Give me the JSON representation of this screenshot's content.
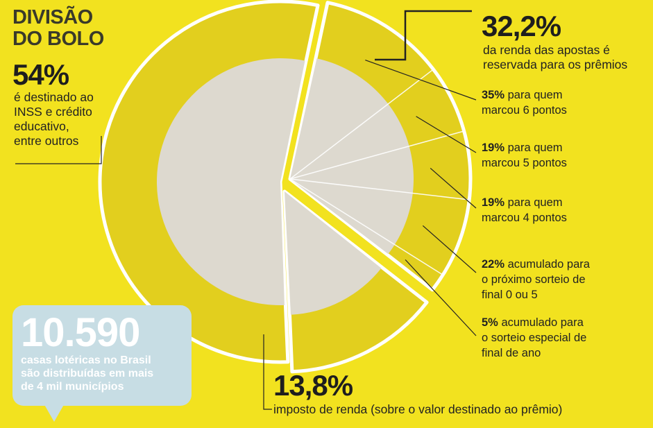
{
  "title_lines": [
    "DIVISÃO",
    "DO BOLO"
  ],
  "colors": {
    "background": "#f2e21f",
    "ring": "#e2cf1e",
    "center": "#ddd9cf",
    "outline": "#ffffff",
    "bubble": "#c7dde4"
  },
  "chart_data": {
    "type": "pie",
    "title": "DIVISÃO DO BOLO",
    "slices": [
      {
        "value": 54.0,
        "pct_label": "54%",
        "description": "é destinado ao INSS e crédito educativo, entre outros"
      },
      {
        "value": 32.2,
        "pct_label": "32,2%",
        "description": "da renda das apostas é reservada para os prêmios"
      },
      {
        "value": 13.8,
        "pct_label": "13,8%",
        "description": "imposto de renda (sobre o valor destinado ao prêmio)"
      }
    ],
    "prize_breakdown": [
      {
        "value": 35,
        "pct_label": "35%",
        "text_lines": [
          "para quem",
          "marcou 6 pontos"
        ]
      },
      {
        "value": 19,
        "pct_label": "19%",
        "text_lines": [
          "para quem",
          "marcou 5 pontos"
        ]
      },
      {
        "value": 19,
        "pct_label": "19%",
        "text_lines": [
          "para quem",
          "marcou 4 pontos"
        ]
      },
      {
        "value": 22,
        "pct_label": "22%",
        "text_lines": [
          "acumulado para",
          "o próximo sorteio de",
          "final 0 ou 5"
        ]
      },
      {
        "value": 5,
        "pct_label": "5%",
        "text_lines": [
          "acumulado para",
          "o sorteio especial de",
          "final de ano"
        ]
      }
    ]
  },
  "left": {
    "pct": "54%",
    "lines": [
      "é destinado ao",
      "INSS e crédito",
      "educativo,",
      "entre outros"
    ]
  },
  "top_right": {
    "pct": "32,2%",
    "lines": [
      "da renda das apostas é",
      "reservada para os prêmios"
    ]
  },
  "bottom": {
    "pct": "13,8%",
    "line": "imposto de renda (sobre o valor destinado ao prêmio)"
  },
  "callout": {
    "number": "10.590",
    "lines": [
      "casas lotéricas no Brasil",
      "são distribuídas em mais",
      "de 4 mil municípios"
    ]
  }
}
